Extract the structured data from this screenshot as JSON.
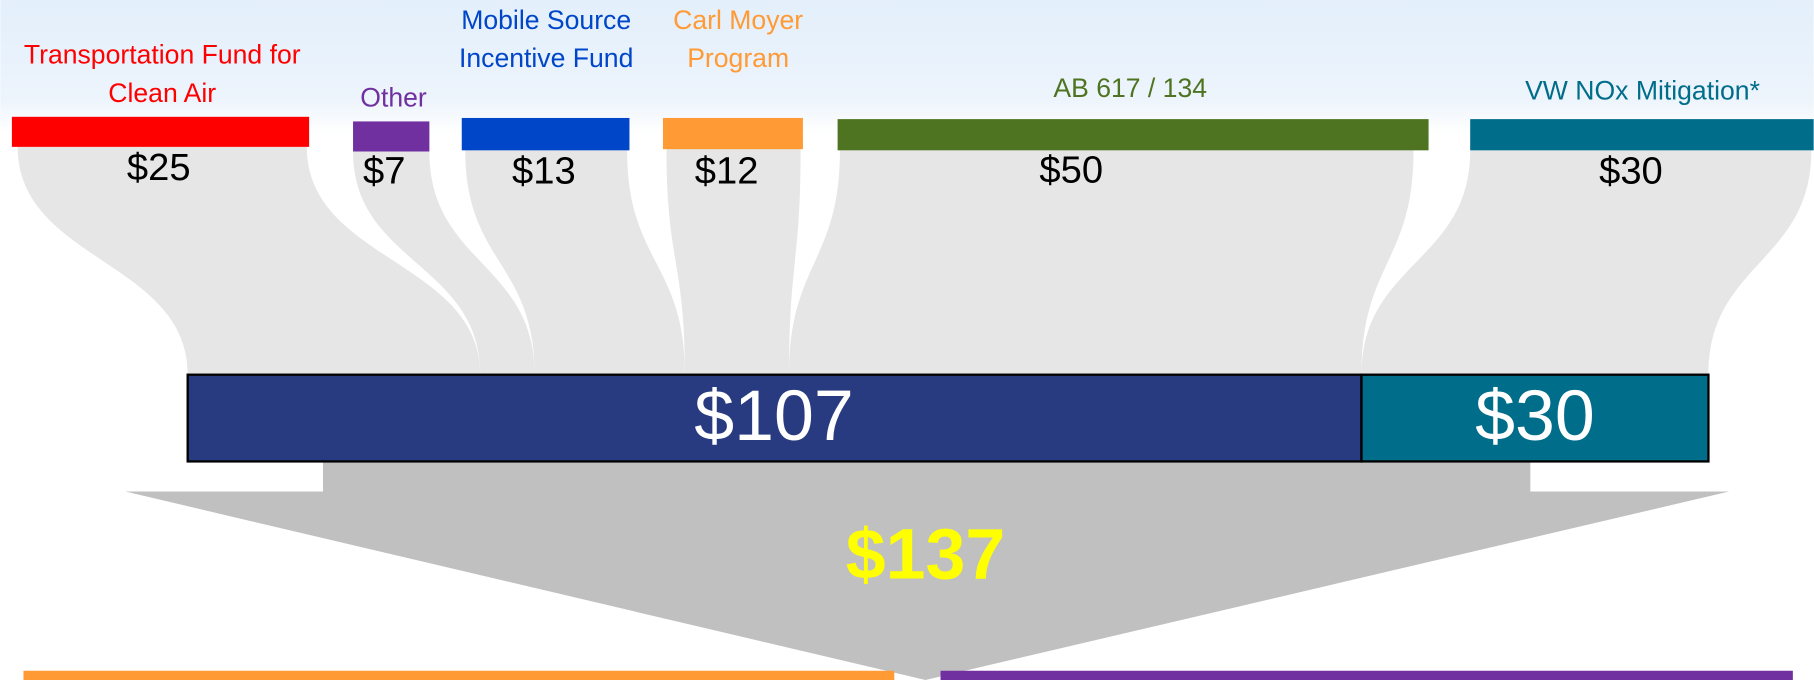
{
  "sources": [
    {
      "label": [
        "Transportation Fund for",
        "Clean Air"
      ],
      "amount": "$25",
      "color": "#ff0000"
    },
    {
      "label": [
        "Other"
      ],
      "amount": "$7",
      "color": "#7030a0"
    },
    {
      "label": [
        "Mobile Source",
        "Incentive Fund"
      ],
      "amount": "$13",
      "color": "#0046c8"
    },
    {
      "label": [
        "Carl Moyer",
        "Program"
      ],
      "amount": "$12",
      "color": "#ff9a35"
    },
    {
      "label": [
        "AB 617 / 134"
      ],
      "amount": "$50",
      "color": "#4e7421"
    },
    {
      "label": [
        "VW NOx Mitigation*"
      ],
      "amount": "$30",
      "color": "#006d8a"
    }
  ],
  "combined": [
    {
      "amount": "$107",
      "color": "#293b80"
    },
    {
      "amount": "$30",
      "color": "#006d8a"
    }
  ],
  "total": "$137"
}
